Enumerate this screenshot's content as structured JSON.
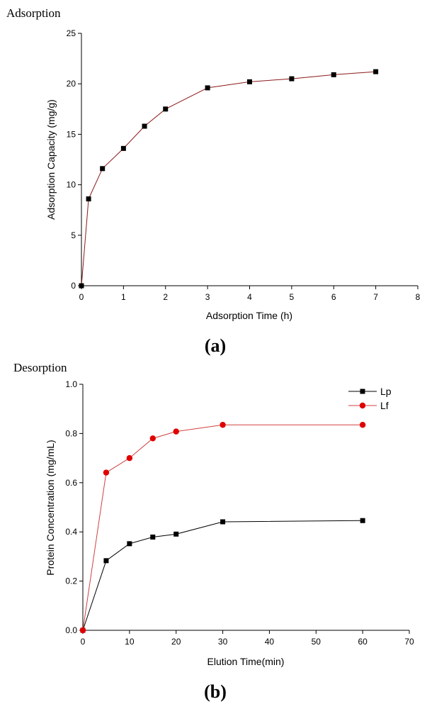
{
  "chart_data": [
    {
      "type": "line",
      "corner_label": "Adsorption",
      "panel_label": "(a)",
      "xlabel": "Adsorption Time (h)",
      "ylabel": "Adsorption Capacity (mg/g)",
      "xlim": [
        0,
        8
      ],
      "ylim": [
        0,
        25
      ],
      "x_ticks": [
        0,
        1,
        2,
        3,
        4,
        5,
        6,
        7,
        8
      ],
      "y_ticks": [
        0,
        5,
        10,
        15,
        20,
        25
      ],
      "grid": false,
      "legend": "none",
      "series": [
        {
          "color": "#8B1A1A",
          "marker": "square",
          "x": [
            0,
            0.17,
            0.5,
            1,
            1.5,
            2,
            3,
            4,
            5,
            6,
            7
          ],
          "y": [
            0,
            8.6,
            11.6,
            13.6,
            15.8,
            17.5,
            19.6,
            20.2,
            20.5,
            20.9,
            21.2
          ]
        }
      ]
    },
    {
      "type": "line",
      "corner_label": "Desorption",
      "panel_label": "(b)",
      "xlabel": "Elution Time(min)",
      "ylabel": "Protein Concentration (mg/mL)",
      "xlim": [
        0,
        70
      ],
      "ylim": [
        0,
        1.0
      ],
      "x_ticks": [
        0,
        10,
        20,
        30,
        40,
        50,
        60,
        70
      ],
      "y_ticks": [
        "0.0",
        "0.2",
        "0.4",
        "0.6",
        "0.8",
        "1.0"
      ],
      "grid": false,
      "legend": "top-right",
      "series": [
        {
          "name": "Lp",
          "color": "#000000",
          "marker": "square",
          "x": [
            0,
            5,
            10,
            15,
            20,
            30,
            60
          ],
          "y": [
            0,
            0.283,
            0.352,
            0.379,
            0.391,
            0.441,
            0.446
          ]
        },
        {
          "name": "Lf",
          "color": "#e00000",
          "line_color": "#d04040",
          "marker": "circle",
          "x": [
            0,
            5,
            10,
            15,
            20,
            30,
            60
          ],
          "y": [
            0,
            0.641,
            0.7,
            0.78,
            0.808,
            0.835,
            0.835
          ]
        }
      ]
    }
  ]
}
